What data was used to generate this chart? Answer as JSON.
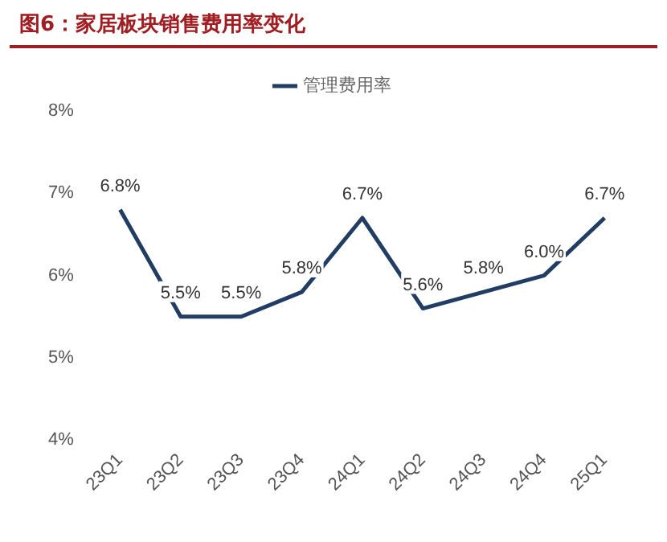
{
  "chart_data": {
    "type": "line",
    "title": "图6：家居板块销售费用率变化",
    "categories": [
      "23Q1",
      "23Q2",
      "23Q3",
      "23Q4",
      "24Q1",
      "24Q2",
      "24Q3",
      "24Q4",
      "25Q1"
    ],
    "series": [
      {
        "name": "管理费用率",
        "color": "#223d63",
        "values": [
          6.8,
          5.5,
          5.5,
          5.8,
          6.7,
          5.6,
          5.8,
          6.0,
          6.7
        ],
        "value_labels": [
          "6.8%",
          "5.5%",
          "5.5%",
          "5.8%",
          "6.7%",
          "5.6%",
          "5.8%",
          "6.0%",
          "6.7%"
        ]
      }
    ],
    "ylim": [
      4,
      8
    ],
    "yticks": [
      {
        "value": 4,
        "label": "4%"
      },
      {
        "value": 5,
        "label": "5%"
      },
      {
        "value": 6,
        "label": "6%"
      },
      {
        "value": 7,
        "label": "7%"
      },
      {
        "value": 8,
        "label": "8%"
      }
    ],
    "legend": "top",
    "grid": false,
    "marker": "none",
    "line_style": "solid"
  }
}
